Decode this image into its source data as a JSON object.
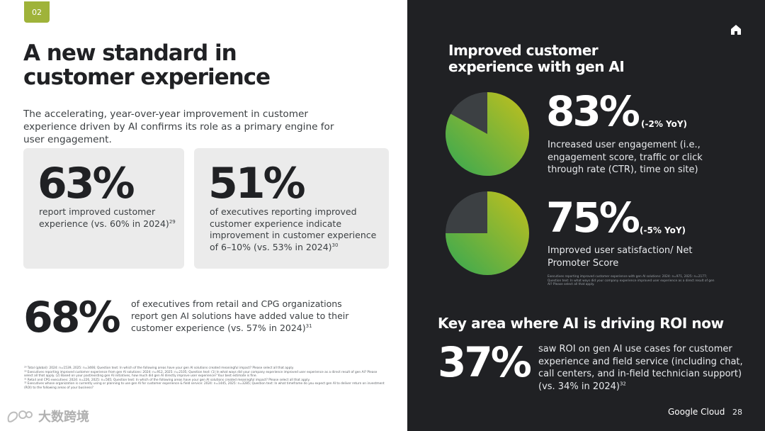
{
  "slide": {
    "number_badge": "02",
    "page_number": "28",
    "brand": "Google Cloud",
    "watermark_text": "大数跨境"
  },
  "left": {
    "title_line1": "A new standard in",
    "title_line2": "customer experience",
    "intro": "The accelerating, year-over-year improvement in customer experience driven by AI confirms its role as a primary engine for user engagement.",
    "card1": {
      "stat": "63%",
      "text": "report improved customer experience (vs. 60% in 2024)",
      "sup": "29"
    },
    "card2": {
      "stat": "51%",
      "text": "of executives reporting improved customer experience indicate improvement in customer experience of 6–10% (vs. 53% in 2024)",
      "sup": "30"
    },
    "stat3": {
      "stat": "68%",
      "text": "of executives from retail and CPG organizations report gen AI solutions have added value to their customer experience (vs. 57% in 2024)",
      "sup": "31"
    },
    "footnotes": [
      "²⁹ Total (global): 2024: n=1539, 2025: n=3466; Question text: In which of the following areas have your gen AI solutions created meaningful impact? Please select all that apply.",
      "³⁰ Executives reporting improved customer experience from gen AI solutions: 2024: n=912, 2025: n=2105; Question text: (1) In what ways did your company experience improved user experience as a direct result of gen AI? Please select all that apply. (2) Based on your past/existing gen AI initiatives, how much did gen AI directly improve user experience? Your best estimate is fine.",
      "³¹ Retail and CPG executives: 2024: n=226, 2025: n=565; Question text: In which of the following areas have your gen AI solutions created meaningful impact? Please select all that apply.",
      "³² Executives whose organization is currently using or planning to use gen AI for customer experience & field service: 2024: n=1445, 2025: n=3285; Question text: In what timeframe do you expect gen AI to deliver return on investment (ROI) to the following areas of your business?"
    ]
  },
  "right": {
    "title_line1": "Improved customer",
    "title_line2": "experience with gen AI",
    "metric1": {
      "stat": "83%",
      "yoy": "(-2% YoY)",
      "desc": "Increased user engagement (i.e., engagement score, traffic or click through rate (CTR), time on site)",
      "fraction": 0.83
    },
    "metric2": {
      "stat": "75%",
      "yoy": "(-5% YoY)",
      "desc": "Improved user satisfaction/ Net Promoter Score",
      "fraction": 0.75
    },
    "footnote": "Executives reporting improved customer experience with gen AI solutions: 2024: n=971, 2025: n=2177; Question text: In what ways did your company experience improved user experience as a direct result of gen AI? Please select all that apply.",
    "key_heading": "Key area where AI is driving ROI now",
    "metric3": {
      "stat": "37%",
      "desc": "saw ROI on gen AI use cases for customer experience and field service (including chat, call centers, and in-field technician support) (vs. 34% in 2024)",
      "sup": "32"
    }
  },
  "colors": {
    "background_dark": "#202124",
    "badge": "#9fb33a",
    "card_gray": "#ebebeb",
    "pie_green": "#34a853",
    "pie_yellow": "#c4c01c",
    "pie_remainder": "#3c4043"
  },
  "icons": {
    "home": "home-icon",
    "watermark_logo": "watermark-logo-icon"
  }
}
